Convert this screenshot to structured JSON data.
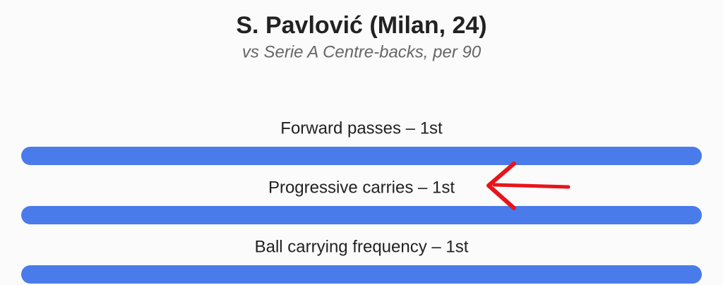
{
  "chart_data": {
    "type": "bar",
    "orientation": "horizontal",
    "title": "S. Pavlović (Milan, 24)",
    "subtitle": "vs Serie A Centre-backs, per 90",
    "categories": [
      "Forward passes – 1st",
      "Progressive carries – 1st",
      "Ball carrying frequency – 1st"
    ],
    "values": [
      100,
      100,
      100
    ],
    "xlim": [
      0,
      100
    ],
    "color": "#4a7bea"
  }
}
